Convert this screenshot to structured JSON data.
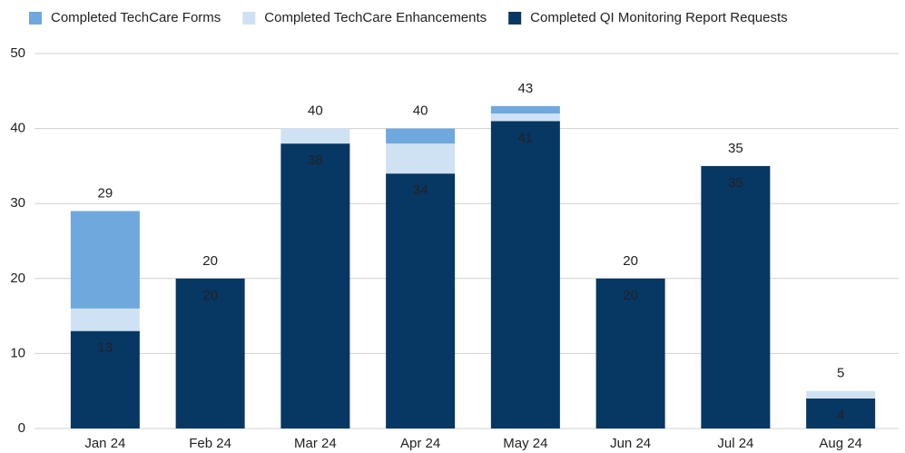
{
  "chart_data": {
    "type": "stacked_bar",
    "categories": [
      "Jan 24",
      "Feb 24",
      "Mar 24",
      "Apr 24",
      "May 24",
      "Jun 24",
      "Jul 24",
      "Aug 24"
    ],
    "series": [
      {
        "name": "Completed QI Monitoring Report Requests",
        "color": "#073763",
        "values": [
          13,
          20,
          38,
          34,
          41,
          20,
          35,
          4
        ]
      },
      {
        "name": "Completed TechCare Enhancements",
        "color": "#cfe2f3",
        "values": [
          3,
          0,
          2,
          4,
          1,
          0,
          0,
          1
        ]
      },
      {
        "name": "Completed TechCare Forms",
        "color": "#6fa8dc",
        "values": [
          13,
          0,
          0,
          2,
          1,
          0,
          0,
          0
        ]
      }
    ],
    "legend_order": [
      2,
      1,
      0
    ],
    "totals": [
      29,
      20,
      40,
      40,
      43,
      20,
      35,
      5
    ],
    "labeled_series": 0,
    "ylim": [
      0,
      50
    ],
    "yticks": [
      0,
      10,
      20,
      30,
      40,
      50
    ],
    "grid": true
  }
}
